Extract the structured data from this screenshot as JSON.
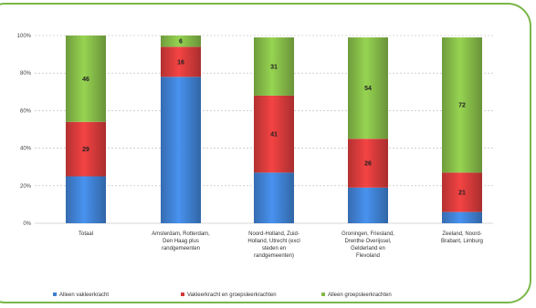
{
  "chart_data": {
    "type": "bar",
    "stacked": true,
    "percent": true,
    "title": "",
    "xlabel": "",
    "ylabel": "",
    "ylim": [
      0,
      100
    ],
    "yticks": [
      "0%",
      "20%",
      "40%",
      "60%",
      "80%",
      "100%"
    ],
    "grid": true,
    "legend_position": "bottom",
    "categories": [
      [
        "Totaal"
      ],
      [
        "Amsterdam, Rotterdam,",
        "Den Haag plus",
        "randgemeenten"
      ],
      [
        "Noord-Holland, Zuid-",
        "Holland, Utrecht (excl",
        "steden en",
        "randgemeenten)"
      ],
      [
        "Groningen, Friesland,",
        "Drenthe Overijssel,",
        "Gelderland en",
        "Flevoland"
      ],
      [
        "Zeeland, Noord-",
        "Brabant, Limburg"
      ]
    ],
    "series": [
      {
        "name": "Alleen vakleerkracht",
        "color": "#3f7fd0",
        "values": [
          25,
          78,
          27,
          19,
          6
        ],
        "labels": [
          "",
          "",
          "",
          "",
          ""
        ]
      },
      {
        "name": "Vakleerkracht en groepsleerkrachten",
        "color": "#d43a3a",
        "values": [
          29,
          16,
          41,
          26,
          21
        ],
        "labels": [
          "29",
          "16",
          "41",
          "26",
          "21"
        ]
      },
      {
        "name": "Alleen groepsleerkrachten",
        "color": "#83b847",
        "values": [
          46,
          6,
          31,
          54,
          72
        ],
        "labels": [
          "46",
          "6",
          "31",
          "54",
          "72"
        ]
      }
    ]
  }
}
